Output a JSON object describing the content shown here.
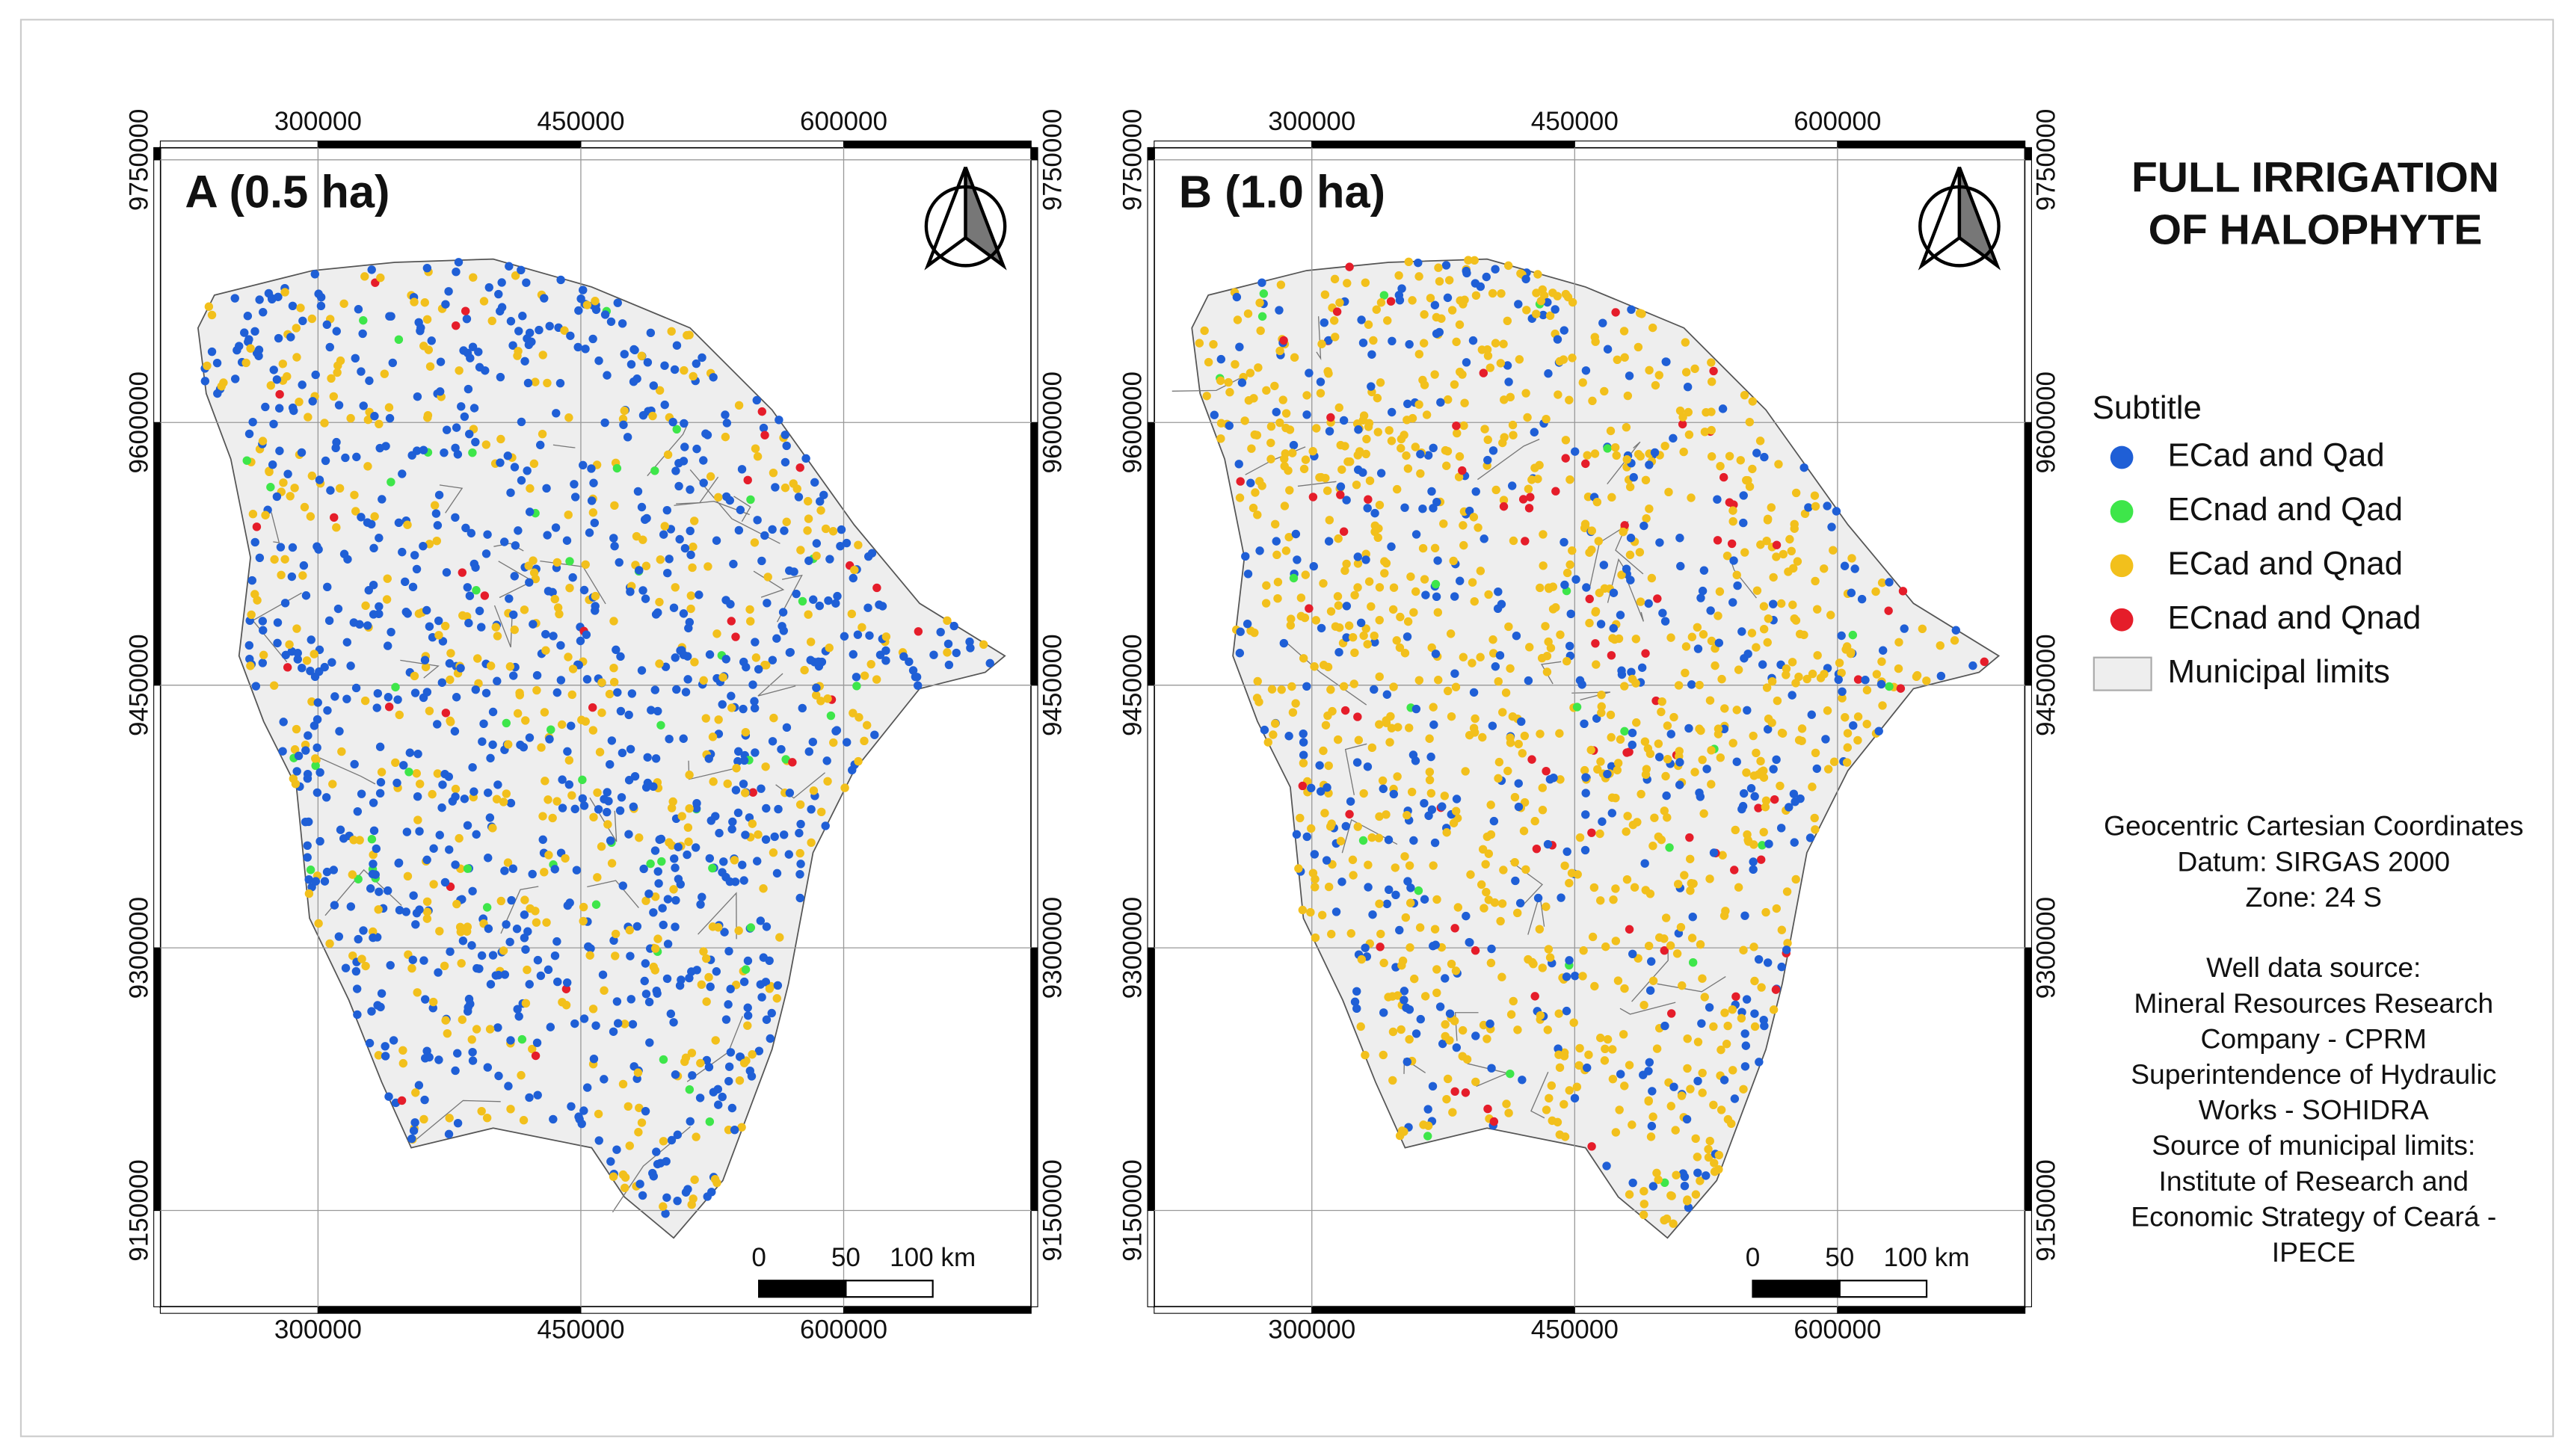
{
  "title_lines": [
    "FULL IRRIGATION",
    "OF HALOPHYTE"
  ],
  "maps": [
    {
      "label": "A (0.5 ha)",
      "xlim": [
        210000,
        707000
      ],
      "ylim": [
        9095000,
        9757000
      ],
      "xticks": [
        300000,
        450000,
        600000
      ],
      "yticks": [
        9750000,
        9600000,
        9450000,
        9300000,
        9150000
      ],
      "scale_bar": [
        0,
        50,
        {
          "value": 100,
          "label": "100 km"
        }
      ]
    },
    {
      "label": "B (1.0 ha)",
      "xlim": [
        210000,
        707000
      ],
      "ylim": [
        9095000,
        9757000
      ],
      "xticks": [
        300000,
        450000,
        600000
      ],
      "yticks": [
        9750000,
        9600000,
        9450000,
        9300000,
        9150000
      ],
      "scale_bar": [
        0,
        50,
        {
          "value": 100,
          "label": "100 km"
        }
      ]
    }
  ],
  "legend": {
    "title": "Subtitle",
    "items": [
      {
        "label": "ECad and Qad",
        "color": "#1f5fd6"
      },
      {
        "label": "ECnad and Qad",
        "color": "#3ee64a"
      },
      {
        "label": "ECad and Qnad",
        "color": "#f2c01c"
      },
      {
        "label": "ECnad and Qnad",
        "color": "#e51d2a"
      },
      {
        "label": "Municipal limits",
        "color": "#eeeeee"
      }
    ]
  },
  "notes": [
    [
      "Geocentric Cartesian Coordinates",
      "Datum: SIRGAS 2000",
      "Zone: 24 S"
    ],
    [
      "Well data source:",
      "Mineral Resources Research",
      "Company - CPRM",
      "Superintendence of Hydraulic",
      "Works - SOHIDRA",
      "Source of municipal limits:",
      "Institute of Research and",
      "Economic Strategy of Ceará -",
      "IPECE"
    ]
  ]
}
